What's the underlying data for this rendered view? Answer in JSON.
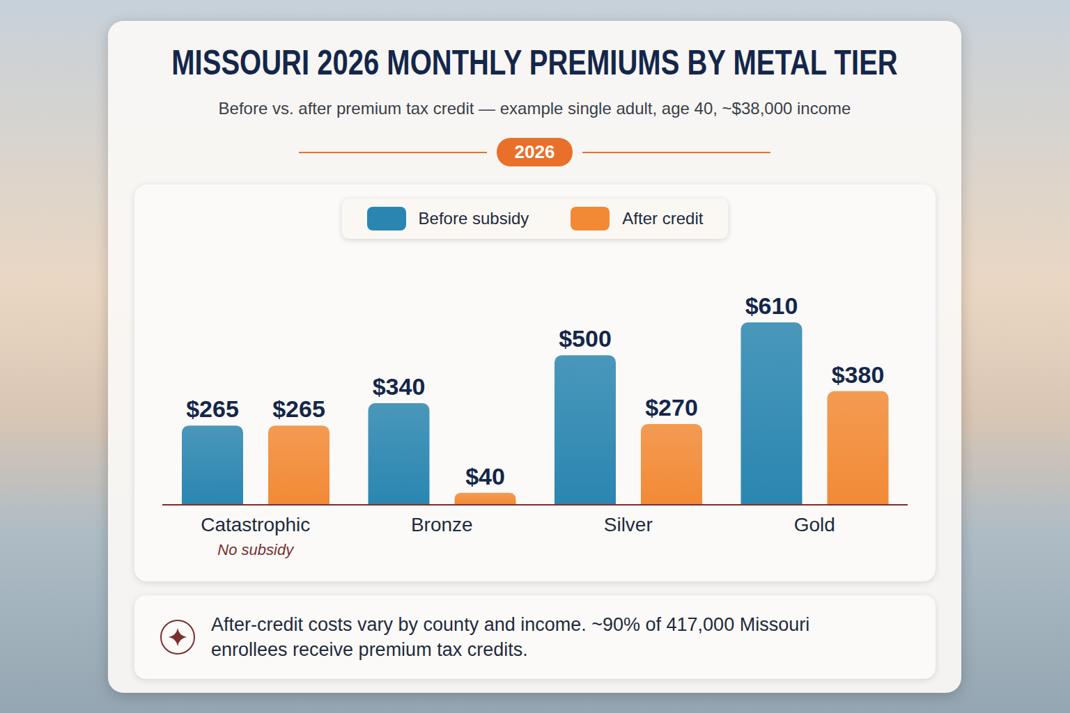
{
  "chart_data": {
    "type": "bar",
    "title": "MISSOURI 2026 MONTHLY PREMIUMS BY METAL TIER",
    "subtitle": "Before vs. after premium tax credit — example single adult, age 40, ~$38,000 income",
    "badge": "2026",
    "categories": [
      "Catastrophic",
      "Bronze",
      "Silver",
      "Gold"
    ],
    "series": [
      {
        "name": "Before subsidy",
        "color": "#2a86b0",
        "values": [
          265,
          340,
          500,
          610
        ],
        "value_labels": [
          "$265",
          "$340",
          "$500",
          "$610"
        ]
      },
      {
        "name": "After credit",
        "color": "#f28a35",
        "values": [
          265,
          40,
          270,
          380
        ],
        "value_labels": [
          "$265",
          "$40",
          "$270",
          "$380"
        ]
      }
    ],
    "data_labels": true,
    "tick_labels": "x",
    "legend": "top",
    "annotations": [
      {
        "category": "Catastrophic",
        "text": "No subsidy"
      }
    ],
    "footnote": "After-credit costs vary by county and income. ~90% of 417,000 Missouri enrollees receive premium tax credits."
  }
}
